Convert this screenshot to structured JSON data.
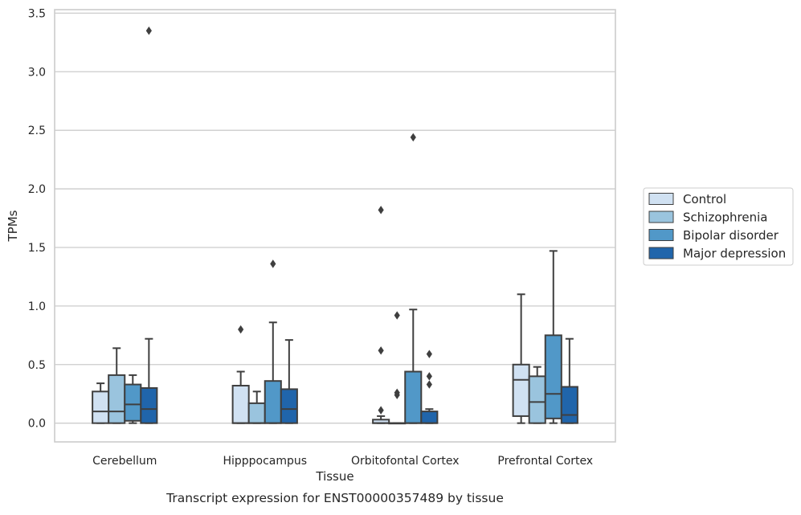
{
  "chart_data": {
    "type": "boxplot",
    "caption": "Transcript expression for ENST00000357489 by tissue",
    "xlabel": "Tissue",
    "ylabel": "TPMs",
    "ylim": [
      -0.16,
      3.53
    ],
    "yticks": [
      0.0,
      0.5,
      1.0,
      1.5,
      2.0,
      2.5,
      3.0,
      3.5
    ],
    "ytick_labels": [
      "0.0",
      "0.5",
      "1.0",
      "1.5",
      "2.0",
      "2.5",
      "3.0",
      "3.5"
    ],
    "grid": "horizontal",
    "legend_position": "right",
    "categories": [
      "Cerebellum",
      "Hipppocampus",
      "Orbitofontal Cortex",
      "Prefrontal Cortex"
    ],
    "series": [
      {
        "name": "Control",
        "color": "#d0e1f2",
        "boxes": [
          {
            "whislo": 0.0,
            "q1": 0.0,
            "med": 0.1,
            "q3": 0.27,
            "whishi": 0.34,
            "fliers": []
          },
          {
            "whislo": 0.0,
            "q1": 0.0,
            "med": 0.0,
            "q3": 0.32,
            "whishi": 0.44,
            "fliers": [
              0.8
            ]
          },
          {
            "whislo": 0.0,
            "q1": 0.0,
            "med": 0.0,
            "q3": 0.03,
            "whishi": 0.06,
            "fliers": [
              1.82,
              0.62,
              0.11
            ]
          },
          {
            "whislo": 0.0,
            "q1": 0.06,
            "med": 0.37,
            "q3": 0.5,
            "whishi": 1.1,
            "fliers": []
          }
        ]
      },
      {
        "name": "Schizophrenia",
        "color": "#9ac4de",
        "boxes": [
          {
            "whislo": 0.0,
            "q1": 0.0,
            "med": 0.1,
            "q3": 0.41,
            "whishi": 0.64,
            "fliers": []
          },
          {
            "whislo": 0.0,
            "q1": 0.0,
            "med": 0.0,
            "q3": 0.17,
            "whishi": 0.27,
            "fliers": []
          },
          {
            "whislo": 0.0,
            "q1": 0.0,
            "med": 0.0,
            "q3": 0.0,
            "whishi": 0.0,
            "fliers": [
              0.92,
              0.26,
              0.24
            ]
          },
          {
            "whislo": 0.0,
            "q1": 0.0,
            "med": 0.18,
            "q3": 0.4,
            "whishi": 0.48,
            "fliers": []
          }
        ]
      },
      {
        "name": "Bipolar disorder",
        "color": "#5198c8",
        "boxes": [
          {
            "whislo": 0.0,
            "q1": 0.02,
            "med": 0.16,
            "q3": 0.33,
            "whishi": 0.41,
            "fliers": []
          },
          {
            "whislo": 0.0,
            "q1": 0.0,
            "med": 0.0,
            "q3": 0.36,
            "whishi": 0.86,
            "fliers": [
              1.36
            ]
          },
          {
            "whislo": 0.0,
            "q1": 0.0,
            "med": 0.0,
            "q3": 0.44,
            "whishi": 0.97,
            "fliers": [
              2.44
            ]
          },
          {
            "whislo": 0.0,
            "q1": 0.04,
            "med": 0.25,
            "q3": 0.75,
            "whishi": 1.47,
            "fliers": []
          }
        ]
      },
      {
        "name": "Major depression",
        "color": "#2065ab",
        "boxes": [
          {
            "whislo": 0.0,
            "q1": 0.0,
            "med": 0.12,
            "q3": 0.3,
            "whishi": 0.72,
            "fliers": [
              3.35
            ]
          },
          {
            "whislo": 0.0,
            "q1": 0.0,
            "med": 0.12,
            "q3": 0.29,
            "whishi": 0.71,
            "fliers": []
          },
          {
            "whislo": 0.0,
            "q1": 0.0,
            "med": 0.0,
            "q3": 0.1,
            "whishi": 0.12,
            "fliers": [
              0.59,
              0.4,
              0.33
            ]
          },
          {
            "whislo": 0.0,
            "q1": 0.0,
            "med": 0.07,
            "q3": 0.31,
            "whishi": 0.72,
            "fliers": []
          }
        ]
      }
    ]
  },
  "colors": {
    "box_edge": "#3f3f3f",
    "grid": "#cccccc",
    "spine": "#cccccc",
    "flier": "#3f3f3f"
  }
}
